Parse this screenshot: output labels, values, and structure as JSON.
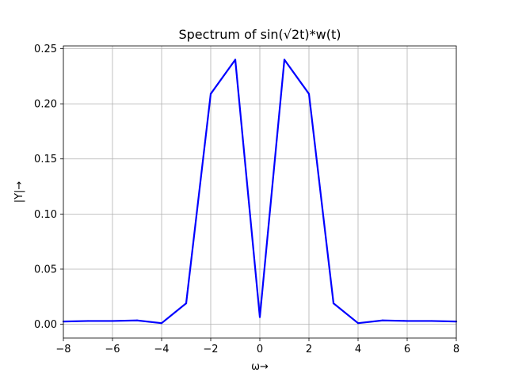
{
  "chart_data": {
    "type": "line",
    "title": "Spectrum of sin(√2t)*w(t)",
    "xlabel": "ω→",
    "ylabel": "|Y|→",
    "xlim": [
      -8,
      8
    ],
    "ylim": [
      -0.0125,
      0.2525
    ],
    "grid": true,
    "xticks": [
      -8,
      -6,
      -4,
      -2,
      0,
      2,
      4,
      6,
      8
    ],
    "xtick_labels": [
      "−8",
      "−6",
      "−4",
      "−2",
      "0",
      "2",
      "4",
      "6",
      "8"
    ],
    "yticks": [
      0.0,
      0.05,
      0.1,
      0.15,
      0.2,
      0.25
    ],
    "ytick_labels": [
      "0.00",
      "0.05",
      "0.10",
      "0.15",
      "0.20",
      "0.25"
    ],
    "series": [
      {
        "color": "#0000ff",
        "x": [
          -8,
          -7,
          -6,
          -5,
          -4,
          -3,
          -2,
          -1,
          0,
          1,
          2,
          3,
          4,
          5,
          6,
          7,
          8
        ],
        "y": [
          0.0025,
          0.003,
          0.003,
          0.0035,
          0.001,
          0.019,
          0.209,
          0.24,
          0.0065,
          0.24,
          0.209,
          0.019,
          0.001,
          0.0035,
          0.003,
          0.003,
          0.0025
        ]
      }
    ]
  }
}
